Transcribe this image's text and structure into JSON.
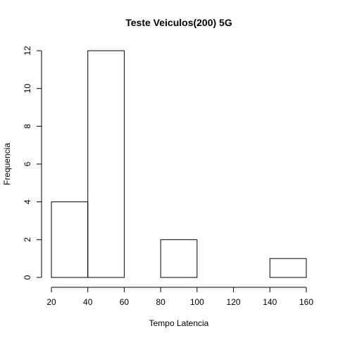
{
  "chart_data": {
    "type": "bar",
    "title": "Teste Veiculos(200) 5G",
    "xlabel": "Tempo Latencia",
    "ylabel": "Frequencia",
    "bins": [
      {
        "x0": 20,
        "x1": 40,
        "count": 4
      },
      {
        "x0": 40,
        "x1": 60,
        "count": 12
      },
      {
        "x0": 60,
        "x1": 80,
        "count": 0
      },
      {
        "x0": 80,
        "x1": 100,
        "count": 2
      },
      {
        "x0": 100,
        "x1": 120,
        "count": 0
      },
      {
        "x0": 120,
        "x1": 140,
        "count": 0
      },
      {
        "x0": 140,
        "x1": 160,
        "count": 1
      }
    ],
    "xticks": [
      20,
      40,
      60,
      80,
      100,
      120,
      140,
      160
    ],
    "yticks": [
      0,
      2,
      4,
      6,
      8,
      10,
      12
    ],
    "xlim": [
      20,
      160
    ],
    "ylim": [
      0,
      12
    ],
    "grid": false
  }
}
